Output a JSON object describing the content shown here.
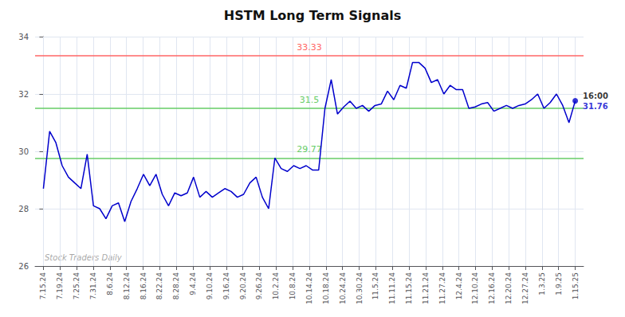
{
  "chart_data": {
    "type": "line",
    "title": "HSTM Long Term Signals",
    "color": "#0000cc",
    "x": [
      0,
      0.3765,
      0.7529,
      1.1294,
      1.5059,
      1.8824,
      2.2588,
      2.6353,
      3.0118,
      3.3882,
      3.7647,
      4.1412,
      4.5176,
      4.8941,
      5.2706,
      5.6471,
      6.0235,
      6.4,
      6.7765,
      7.1529,
      7.5294,
      7.9059,
      8.2824,
      8.6588,
      9.0353,
      9.4118,
      9.7882,
      10.1647,
      10.5412,
      10.9176,
      11.2941,
      11.6706,
      12.0471,
      12.4235,
      12.8,
      13.1765,
      13.5529,
      13.9294,
      14.3059,
      14.6824,
      15.0588,
      15.4353,
      15.8118,
      16.1882,
      16.5647,
      16.9412,
      17.3176,
      17.6941,
      18.0706,
      18.4471,
      18.8235,
      19.2,
      19.5765,
      19.9529,
      20.3294,
      20.7059,
      21.0824,
      21.4588,
      21.8353,
      22.2118,
      22.5882,
      22.9647,
      23.3412,
      23.7176,
      24.0941,
      24.4706,
      24.8471,
      25.2235,
      25.6,
      25.9765,
      26.3529,
      26.7294,
      27.1059,
      27.4824,
      27.8588,
      28.2353,
      28.6118,
      28.9882,
      29.3647,
      29.7412,
      30.1176,
      30.4941,
      30.8706,
      31.2471,
      31.6235,
      32
    ],
    "values": [
      28.7,
      30.7,
      30.3,
      29.5,
      29.1,
      28.9,
      28.7,
      29.9,
      28.1,
      28.0,
      27.65,
      28.1,
      28.2,
      27.55,
      28.25,
      28.7,
      29.2,
      28.8,
      29.2,
      28.5,
      28.1,
      28.55,
      28.45,
      28.55,
      29.1,
      28.4,
      28.6,
      28.4,
      28.55,
      28.7,
      28.6,
      28.4,
      28.5,
      28.9,
      29.1,
      28.4,
      28.0,
      29.77,
      29.4,
      29.3,
      29.5,
      29.4,
      29.5,
      29.35,
      29.35,
      31.5,
      32.5,
      31.3,
      31.55,
      31.75,
      31.5,
      31.6,
      31.4,
      31.6,
      31.65,
      32.1,
      31.8,
      32.3,
      32.2,
      33.1,
      33.1,
      32.9,
      32.4,
      32.5,
      32.0,
      32.3,
      32.15,
      32.15,
      31.5,
      31.55,
      31.65,
      31.7,
      31.4,
      31.5,
      31.6,
      31.5,
      31.6,
      31.65,
      31.8,
      32.0,
      31.5,
      31.7,
      32.0,
      31.6,
      31.0,
      31.76
    ],
    "xlim": [
      -0.5,
      32.5
    ],
    "xticks": [
      {
        "value": 0,
        "label": "7.15.24"
      },
      {
        "value": 1,
        "label": "7.19.24"
      },
      {
        "value": 2,
        "label": "7.25.24"
      },
      {
        "value": 3,
        "label": "7.31.24"
      },
      {
        "value": 4,
        "label": "8.6.24"
      },
      {
        "value": 5,
        "label": "8.12.24"
      },
      {
        "value": 6,
        "label": "8.16.24"
      },
      {
        "value": 7,
        "label": "8.22.24"
      },
      {
        "value": 8,
        "label": "8.28.24"
      },
      {
        "value": 9,
        "label": "9.4.24"
      },
      {
        "value": 10,
        "label": "9.10.24"
      },
      {
        "value": 11,
        "label": "9.16.24"
      },
      {
        "value": 12,
        "label": "9.20.24"
      },
      {
        "value": 13,
        "label": "9.26.24"
      },
      {
        "value": 14,
        "label": "10.2.24"
      },
      {
        "value": 15,
        "label": "10.8.24"
      },
      {
        "value": 16,
        "label": "10.14.24"
      },
      {
        "value": 17,
        "label": "10.18.24"
      },
      {
        "value": 18,
        "label": "10.24.24"
      },
      {
        "value": 19,
        "label": "10.30.24"
      },
      {
        "value": 20,
        "label": "11.5.24"
      },
      {
        "value": 21,
        "label": "11.11.24"
      },
      {
        "value": 22,
        "label": "11.15.24"
      },
      {
        "value": 23,
        "label": "11.21.24"
      },
      {
        "value": 24,
        "label": "11.27.24"
      },
      {
        "value": 25,
        "label": "12.4.24"
      },
      {
        "value": 26,
        "label": "12.10.24"
      },
      {
        "value": 27,
        "label": "12.16.24"
      },
      {
        "value": 28,
        "label": "12.20.24"
      },
      {
        "value": 29,
        "label": "12.27.24"
      },
      {
        "value": 30,
        "label": "1.3.25"
      },
      {
        "value": 31,
        "label": "1.9.25"
      },
      {
        "value": 32,
        "label": "1.15.25"
      }
    ],
    "ylim": [
      26,
      34
    ],
    "yticks": [
      26,
      28,
      30,
      32,
      34
    ],
    "grid": true,
    "reference_lines": [
      {
        "value": 33.33,
        "label": "33.33",
        "color": "#ff6666"
      },
      {
        "value": 31.5,
        "label": "31.5",
        "color": "#66cc66"
      },
      {
        "value": 29.77,
        "label": "29.77",
        "color": "#66cc66"
      }
    ],
    "annotations": {
      "last_time": "16:00",
      "last_price": "31.76",
      "watermark": "Stock Traders Daily"
    }
  }
}
